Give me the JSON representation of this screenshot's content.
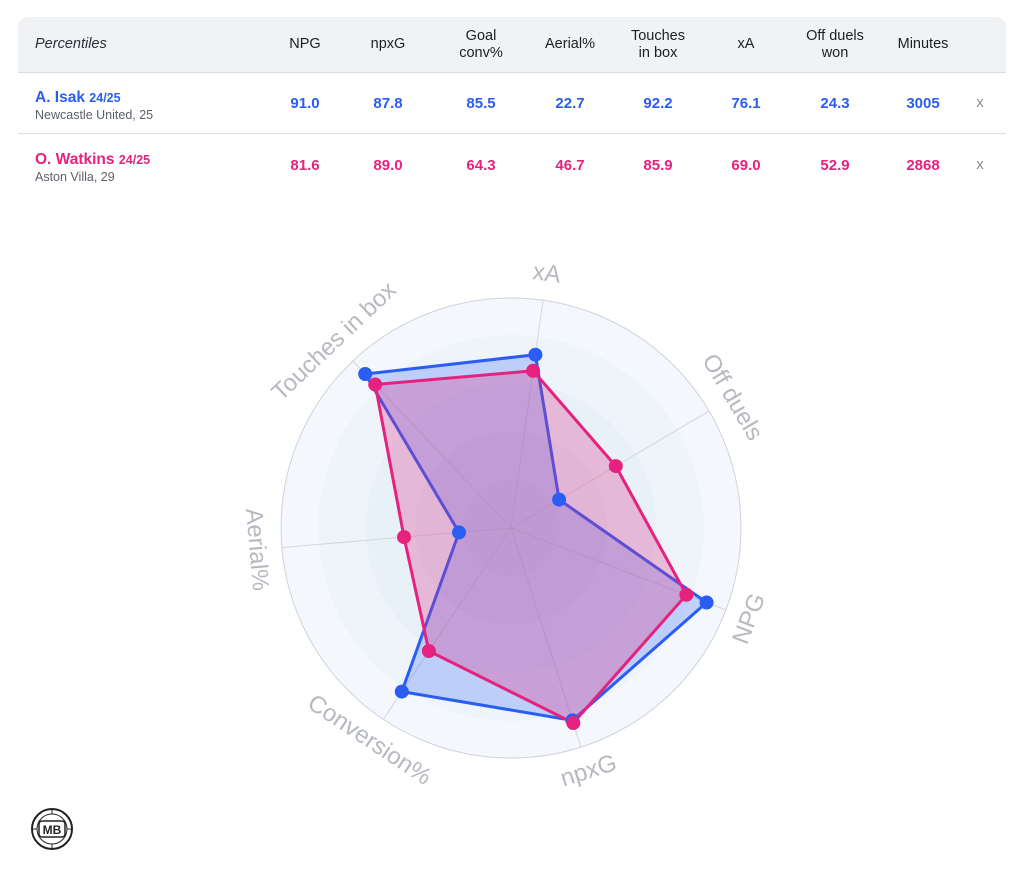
{
  "table": {
    "header_label": "Percentiles",
    "columns": [
      [
        "NPG"
      ],
      [
        "npxG"
      ],
      [
        "Goal",
        "conv%"
      ],
      [
        "Aerial%"
      ],
      [
        "Touches",
        "in box"
      ],
      [
        "xA"
      ],
      [
        "Off duels",
        "won"
      ],
      [
        "Minutes"
      ]
    ],
    "close_label": "x",
    "rows": [
      {
        "name": "A. Isak",
        "season": "24/25",
        "club": "Newcastle United, 25",
        "color": "#2a5df3",
        "values": [
          "91.0",
          "87.8",
          "85.5",
          "22.7",
          "92.2",
          "76.1",
          "24.3",
          "3005"
        ]
      },
      {
        "name": "O. Watkins",
        "season": "24/25",
        "club": "Aston Villa, 29",
        "color": "#e5227d",
        "values": [
          "81.6",
          "89.0",
          "64.3",
          "46.7",
          "85.9",
          "69.0",
          "52.9",
          "2868"
        ]
      }
    ]
  },
  "chart_data": {
    "type": "radar",
    "axes": [
      "xA",
      "Off duels",
      "NPG",
      "npxG",
      "Conversion%",
      "Aerial%",
      "Touches in box"
    ],
    "range": [
      0,
      100
    ],
    "series": [
      {
        "name": "A. Isak",
        "color": "#2a5df3",
        "values": [
          76.1,
          24.3,
          91.0,
          87.8,
          85.5,
          22.7,
          92.2
        ]
      },
      {
        "name": "O. Watkins",
        "color": "#e5227d",
        "values": [
          69.0,
          52.9,
          81.6,
          89.0,
          64.3,
          46.7,
          85.9
        ]
      }
    ]
  },
  "logo": {
    "text": "MB"
  }
}
